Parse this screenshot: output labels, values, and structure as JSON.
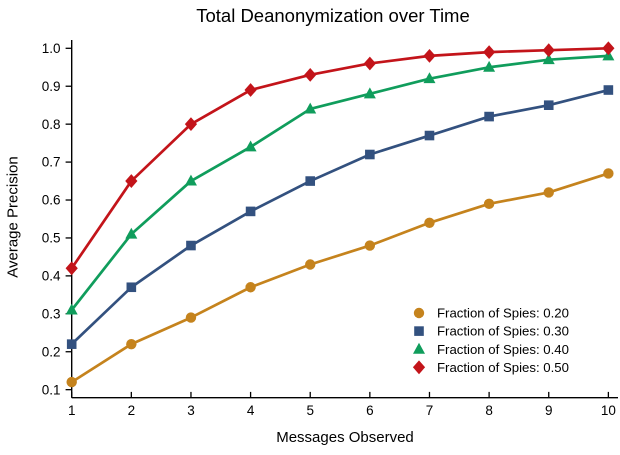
{
  "chart_data": {
    "type": "line",
    "title": "Total Deanonymization over Time",
    "xlabel": "Messages Observed",
    "ylabel": "Average Precision",
    "x": [
      1,
      2,
      3,
      4,
      5,
      6,
      7,
      8,
      9,
      10
    ],
    "xticks": [
      1,
      2,
      3,
      4,
      5,
      6,
      7,
      8,
      9,
      10
    ],
    "yticks": [
      0.1,
      0.2,
      0.3,
      0.4,
      0.5,
      0.6,
      0.7,
      0.8,
      0.9,
      1.0
    ],
    "xlim": [
      1,
      10.2
    ],
    "ylim": [
      0.08,
      1.02
    ],
    "grid": false,
    "legend_position": "lower-right",
    "series": [
      {
        "name": "Fraction of Spies: 0.20",
        "marker": "circle",
        "color": "#C5831D",
        "values": [
          0.12,
          0.22,
          0.29,
          0.37,
          0.43,
          0.48,
          0.54,
          0.59,
          0.62,
          0.67
        ]
      },
      {
        "name": "Fraction of Spies: 0.30",
        "marker": "square",
        "color": "#33517F",
        "values": [
          0.22,
          0.37,
          0.48,
          0.57,
          0.65,
          0.72,
          0.77,
          0.82,
          0.85,
          0.89
        ]
      },
      {
        "name": "Fraction of Spies: 0.40",
        "marker": "triangle",
        "color": "#109D5C",
        "values": [
          0.31,
          0.51,
          0.65,
          0.74,
          0.84,
          0.88,
          0.92,
          0.95,
          0.97,
          0.98
        ]
      },
      {
        "name": "Fraction of Spies: 0.50",
        "marker": "diamond",
        "color": "#C3141A",
        "values": [
          0.42,
          0.65,
          0.8,
          0.89,
          0.93,
          0.96,
          0.98,
          0.99,
          0.995,
          1.0
        ]
      }
    ]
  }
}
